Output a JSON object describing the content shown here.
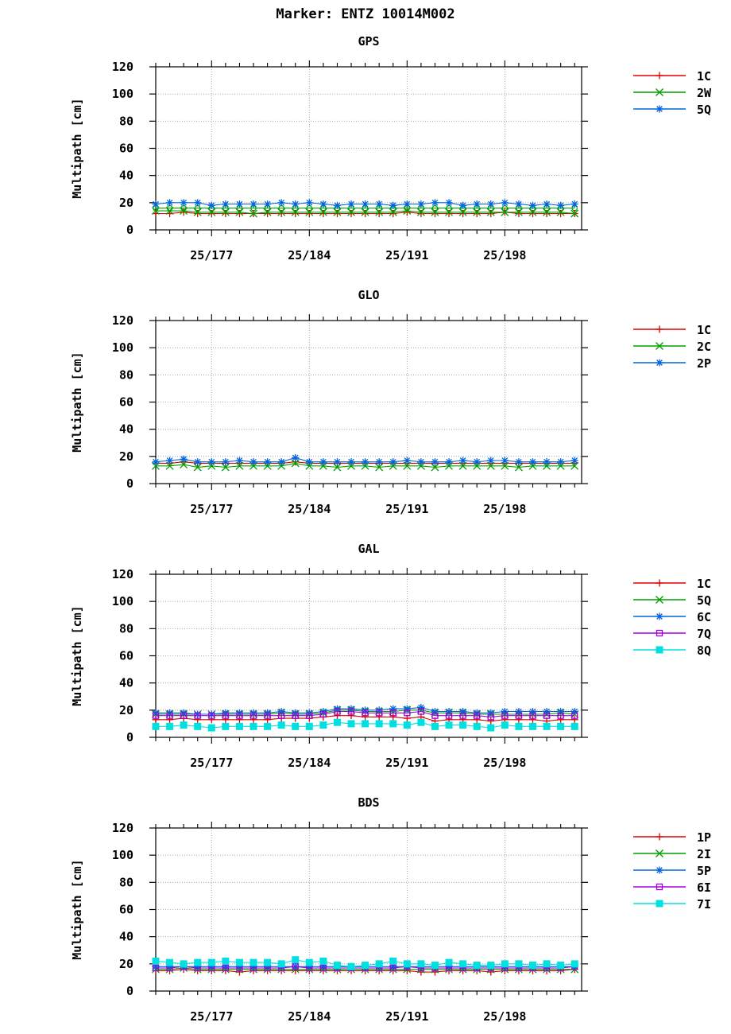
{
  "page_title": "Marker: ENTZ 10014M002",
  "chart_data": [
    {
      "type": "line",
      "title": "GPS",
      "ylabel": "Multipath [cm]",
      "xlabel": "",
      "ylim": [
        0,
        120
      ],
      "yticks": [
        0,
        20,
        40,
        60,
        80,
        100,
        120
      ],
      "xlim": [
        173,
        203.5
      ],
      "xticks": [
        {
          "value": 177,
          "label": "25/177"
        },
        {
          "value": 184,
          "label": "25/184"
        },
        {
          "value": 191,
          "label": "25/191"
        },
        {
          "value": 198,
          "label": "25/198"
        }
      ],
      "grid": true,
      "legend": "right",
      "x": [
        173,
        174,
        175,
        176,
        177,
        178,
        179,
        180,
        181,
        182,
        183,
        184,
        185,
        186,
        187,
        188,
        189,
        190,
        191,
        192,
        193,
        194,
        195,
        196,
        197,
        198,
        199,
        200,
        201,
        202,
        203
      ],
      "series": [
        {
          "name": "1C",
          "color": "#e00000",
          "marker": "plus",
          "values": [
            12,
            12,
            13,
            12,
            12,
            12,
            12,
            12,
            12,
            12,
            12,
            12,
            12,
            12,
            12,
            12,
            12,
            12,
            13,
            12,
            12,
            12,
            12,
            12,
            12,
            13,
            12,
            12,
            12,
            12,
            12
          ]
        },
        {
          "name": "2W",
          "color": "#00a000",
          "marker": "x",
          "values": [
            14,
            14,
            14,
            13,
            13,
            13,
            13,
            12,
            13,
            13,
            13,
            13,
            13,
            13,
            13,
            13,
            13,
            13,
            14,
            13,
            13,
            13,
            13,
            13,
            13,
            13,
            13,
            13,
            13,
            13,
            12
          ]
        },
        {
          "name": "5Q",
          "color": "#0064e0",
          "marker": "star",
          "values": [
            19,
            20,
            20,
            20,
            18,
            19,
            19,
            19,
            19,
            20,
            19,
            20,
            19,
            18,
            19,
            19,
            19,
            18,
            19,
            19,
            20,
            20,
            18,
            19,
            19,
            20,
            19,
            18,
            19,
            18,
            19
          ]
        }
      ],
      "extra_series": [
        {
          "name": "",
          "color": "#00a000",
          "marker": "circle",
          "values": [
            16,
            16,
            16,
            16,
            16,
            16,
            16,
            16,
            16,
            16,
            16,
            16,
            16,
            16,
            16,
            16,
            16,
            16,
            16,
            16,
            16,
            16,
            16,
            16,
            16,
            16,
            16,
            16,
            16,
            16,
            16
          ]
        }
      ]
    },
    {
      "type": "line",
      "title": "GLO",
      "ylabel": "Multipath [cm]",
      "xlabel": "",
      "ylim": [
        0,
        120
      ],
      "yticks": [
        0,
        20,
        40,
        60,
        80,
        100,
        120
      ],
      "xlim": [
        173,
        203.5
      ],
      "xticks": [
        {
          "value": 177,
          "label": "25/177"
        },
        {
          "value": 184,
          "label": "25/184"
        },
        {
          "value": 191,
          "label": "25/191"
        },
        {
          "value": 198,
          "label": "25/198"
        }
      ],
      "grid": true,
      "legend": "right",
      "x": [
        173,
        174,
        175,
        176,
        177,
        178,
        179,
        180,
        181,
        182,
        183,
        184,
        185,
        186,
        187,
        188,
        189,
        190,
        191,
        192,
        193,
        194,
        195,
        196,
        197,
        198,
        199,
        200,
        201,
        202,
        203
      ],
      "series": [
        {
          "name": "1C",
          "color": "#e00000",
          "marker": "plus",
          "values": [
            15,
            15,
            16,
            15,
            15,
            15,
            15,
            15,
            15,
            15,
            16,
            15,
            15,
            15,
            15,
            15,
            15,
            15,
            15,
            15,
            15,
            15,
            15,
            15,
            15,
            15,
            15,
            15,
            15,
            15,
            15
          ]
        },
        {
          "name": "2C",
          "color": "#00a000",
          "marker": "x",
          "values": [
            13,
            13,
            14,
            12,
            13,
            12,
            13,
            13,
            13,
            13,
            15,
            13,
            13,
            12,
            13,
            13,
            12,
            13,
            13,
            13,
            12,
            13,
            13,
            13,
            13,
            13,
            12,
            13,
            13,
            13,
            13
          ]
        },
        {
          "name": "2P",
          "color": "#0064e0",
          "marker": "star",
          "values": [
            16,
            17,
            18,
            16,
            16,
            16,
            17,
            16,
            16,
            16,
            19,
            16,
            16,
            16,
            16,
            16,
            16,
            16,
            17,
            16,
            16,
            16,
            17,
            16,
            17,
            17,
            16,
            16,
            16,
            16,
            17
          ]
        }
      ]
    },
    {
      "type": "line",
      "title": "GAL",
      "ylabel": "Multipath [cm]",
      "xlabel": "",
      "ylim": [
        0,
        120
      ],
      "yticks": [
        0,
        20,
        40,
        60,
        80,
        100,
        120
      ],
      "xlim": [
        173,
        203.5
      ],
      "xticks": [
        {
          "value": 177,
          "label": "25/177"
        },
        {
          "value": 184,
          "label": "25/184"
        },
        {
          "value": 191,
          "label": "25/191"
        },
        {
          "value": 198,
          "label": "25/198"
        }
      ],
      "grid": true,
      "legend": "right",
      "x": [
        173,
        174,
        175,
        176,
        177,
        178,
        179,
        180,
        181,
        182,
        183,
        184,
        185,
        186,
        187,
        188,
        189,
        190,
        191,
        192,
        193,
        194,
        195,
        196,
        197,
        198,
        199,
        200,
        201,
        202,
        203
      ],
      "series": [
        {
          "name": "1C",
          "color": "#e00000",
          "marker": "plus",
          "values": [
            13,
            13,
            14,
            13,
            13,
            13,
            13,
            13,
            13,
            14,
            14,
            14,
            15,
            16,
            16,
            15,
            15,
            15,
            14,
            15,
            12,
            13,
            13,
            13,
            12,
            13,
            13,
            13,
            12,
            13,
            13
          ]
        },
        {
          "name": "5Q",
          "color": "#00a000",
          "marker": "x",
          "values": [
            17,
            17,
            17,
            17,
            17,
            17,
            17,
            17,
            17,
            18,
            17,
            17,
            18,
            20,
            20,
            19,
            19,
            19,
            20,
            20,
            18,
            18,
            18,
            17,
            17,
            17,
            17,
            17,
            17,
            18,
            17
          ]
        },
        {
          "name": "6C",
          "color": "#0064e0",
          "marker": "star",
          "values": [
            18,
            18,
            18,
            17,
            17,
            18,
            18,
            18,
            18,
            19,
            18,
            18,
            19,
            21,
            21,
            20,
            20,
            21,
            21,
            22,
            19,
            19,
            19,
            18,
            18,
            19,
            19,
            19,
            19,
            19,
            19
          ]
        },
        {
          "name": "7Q",
          "color": "#a000e0",
          "marker": "square",
          "values": [
            16,
            16,
            16,
            16,
            16,
            16,
            16,
            16,
            16,
            16,
            16,
            16,
            17,
            19,
            19,
            18,
            18,
            18,
            18,
            19,
            16,
            16,
            16,
            16,
            15,
            16,
            16,
            16,
            16,
            16,
            16
          ]
        },
        {
          "name": "8Q",
          "color": "#00e0e0",
          "marker": "filled-square",
          "values": [
            8,
            8,
            9,
            8,
            7,
            8,
            8,
            8,
            8,
            9,
            8,
            8,
            9,
            11,
            10,
            10,
            10,
            10,
            9,
            11,
            8,
            9,
            9,
            8,
            7,
            9,
            8,
            8,
            8,
            8,
            8
          ]
        }
      ]
    },
    {
      "type": "line",
      "title": "BDS",
      "ylabel": "Multipath [cm]",
      "xlabel": "",
      "ylim": [
        0,
        120
      ],
      "yticks": [
        0,
        20,
        40,
        60,
        80,
        100,
        120
      ],
      "xlim": [
        173,
        203.5
      ],
      "xticks": [
        {
          "value": 177,
          "label": "25/177"
        },
        {
          "value": 184,
          "label": "25/184"
        },
        {
          "value": 191,
          "label": "25/191"
        },
        {
          "value": 198,
          "label": "25/198"
        }
      ],
      "grid": true,
      "legend": "right",
      "x": [
        173,
        174,
        175,
        176,
        177,
        178,
        179,
        180,
        181,
        182,
        183,
        184,
        185,
        186,
        187,
        188,
        189,
        190,
        191,
        192,
        193,
        194,
        195,
        196,
        197,
        198,
        199,
        200,
        201,
        202,
        203
      ],
      "series": [
        {
          "name": "1P",
          "color": "#e00000",
          "marker": "plus",
          "values": [
            15,
            15,
            16,
            15,
            15,
            15,
            14,
            15,
            15,
            15,
            15,
            15,
            15,
            15,
            15,
            15,
            15,
            15,
            15,
            14,
            14,
            15,
            15,
            15,
            14,
            15,
            15,
            15,
            15,
            15,
            16
          ]
        },
        {
          "name": "2I",
          "color": "#00a000",
          "marker": "x",
          "values": [
            16,
            16,
            17,
            16,
            16,
            16,
            16,
            16,
            16,
            16,
            16,
            16,
            16,
            16,
            16,
            16,
            16,
            16,
            16,
            16,
            16,
            16,
            16,
            16,
            16,
            16,
            16,
            16,
            16,
            16,
            16
          ]
        },
        {
          "name": "5P",
          "color": "#0064e0",
          "marker": "star",
          "values": [
            18,
            18,
            18,
            18,
            18,
            18,
            18,
            18,
            18,
            18,
            18,
            18,
            18,
            18,
            18,
            18,
            18,
            18,
            18,
            18,
            18,
            18,
            18,
            18,
            18,
            18,
            18,
            18,
            18,
            18,
            18
          ]
        },
        {
          "name": "6I",
          "color": "#a000e0",
          "marker": "square",
          "values": [
            17,
            17,
            18,
            17,
            17,
            17,
            17,
            17,
            17,
            17,
            18,
            17,
            17,
            17,
            17,
            17,
            17,
            17,
            18,
            17,
            17,
            17,
            17,
            17,
            17,
            17,
            17,
            17,
            17,
            17,
            18
          ]
        },
        {
          "name": "7I",
          "color": "#00e0e0",
          "marker": "filled-square",
          "values": [
            22,
            21,
            20,
            21,
            21,
            22,
            21,
            21,
            21,
            20,
            23,
            21,
            22,
            19,
            18,
            19,
            20,
            22,
            20,
            20,
            19,
            21,
            20,
            19,
            19,
            20,
            20,
            19,
            20,
            19,
            20
          ]
        }
      ]
    }
  ]
}
